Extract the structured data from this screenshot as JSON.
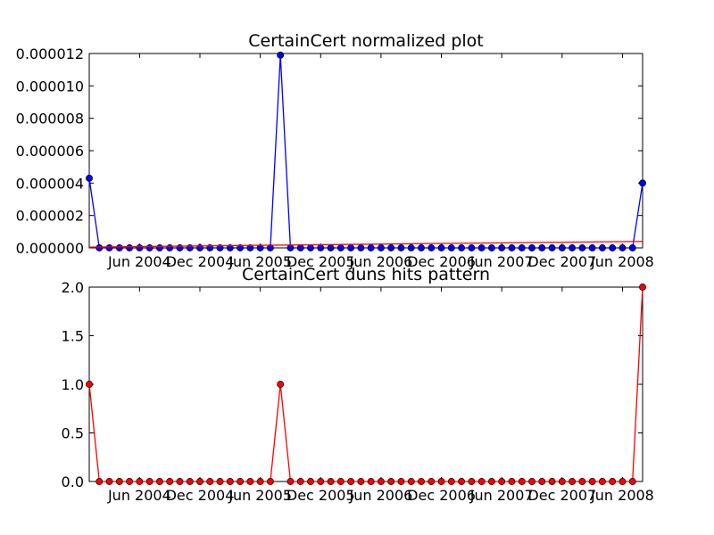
{
  "chart_data": [
    {
      "type": "line",
      "title": "CertainCert normalized plot",
      "xlabel": "",
      "ylabel": "",
      "ylim": [
        0,
        1.2e-05
      ],
      "yticks": [
        "0.000000",
        "0.000002",
        "0.000004",
        "0.000006",
        "0.000008",
        "0.000010",
        "0.000012"
      ],
      "xticks": [
        "Jun 2004",
        "Dec 2004",
        "Jun 2005",
        "Dec 2005",
        "Jun 2006",
        "Dec 2006",
        "Jun 2007",
        "Dec 2007",
        "Jun 2008"
      ],
      "x_range": [
        "2004-01",
        "2008-08"
      ],
      "grid": false,
      "series": [
        {
          "color": "#0000ff",
          "marker": "circle",
          "x": [
            "2004-01",
            "2004-02",
            "2004-03",
            "2004-04",
            "2004-05",
            "2004-06",
            "2004-07",
            "2004-08",
            "2004-09",
            "2004-10",
            "2004-11",
            "2004-12",
            "2005-01",
            "2005-02",
            "2005-03",
            "2005-04",
            "2005-05",
            "2005-06",
            "2005-07",
            "2005-08",
            "2005-09",
            "2005-10",
            "2005-11",
            "2005-12",
            "2006-01",
            "2006-02",
            "2006-03",
            "2006-04",
            "2006-05",
            "2006-06",
            "2006-07",
            "2006-08",
            "2006-09",
            "2006-10",
            "2006-11",
            "2006-12",
            "2007-01",
            "2007-02",
            "2007-03",
            "2007-04",
            "2007-05",
            "2007-06",
            "2007-07",
            "2007-08",
            "2007-09",
            "2007-10",
            "2007-11",
            "2007-12",
            "2008-01",
            "2008-02",
            "2008-03",
            "2008-04",
            "2008-05",
            "2008-06",
            "2008-07",
            "2008-08"
          ],
          "values": [
            4.3e-06,
            0,
            0,
            0,
            0,
            0,
            0,
            0,
            0,
            0,
            0,
            0,
            0,
            0,
            0,
            0,
            0,
            0,
            0,
            1.19e-05,
            0,
            0,
            0,
            0,
            0,
            0,
            0,
            0,
            0,
            0,
            0,
            0,
            0,
            0,
            0,
            0,
            0,
            0,
            0,
            0,
            0,
            0,
            0,
            0,
            0,
            0,
            0,
            0,
            0,
            0,
            0,
            0,
            0,
            0,
            0,
            4e-06
          ]
        },
        {
          "color": "#ff0000",
          "marker": "none",
          "x": [
            "2004-01",
            "2008-08"
          ],
          "values": [
            5e-08,
            4e-07
          ]
        }
      ]
    },
    {
      "type": "line",
      "title": "CertainCert duns hits pattern",
      "xlabel": "",
      "ylabel": "",
      "ylim": [
        0,
        2
      ],
      "yticks": [
        "0.0",
        "0.5",
        "1.0",
        "1.5",
        "2.0"
      ],
      "xticks": [
        "Jun 2004",
        "Dec 2004",
        "Jun 2005",
        "Dec 2005",
        "Jun 2006",
        "Dec 2006",
        "Jun 2007",
        "Dec 2007",
        "Jun 2008"
      ],
      "x_range": [
        "2004-01",
        "2008-08"
      ],
      "grid": false,
      "series": [
        {
          "color": "#ff0000",
          "marker": "circle",
          "x": [
            "2004-01",
            "2004-02",
            "2004-03",
            "2004-04",
            "2004-05",
            "2004-06",
            "2004-07",
            "2004-08",
            "2004-09",
            "2004-10",
            "2004-11",
            "2004-12",
            "2005-01",
            "2005-02",
            "2005-03",
            "2005-04",
            "2005-05",
            "2005-06",
            "2005-07",
            "2005-08",
            "2005-09",
            "2005-10",
            "2005-11",
            "2005-12",
            "2006-01",
            "2006-02",
            "2006-03",
            "2006-04",
            "2006-05",
            "2006-06",
            "2006-07",
            "2006-08",
            "2006-09",
            "2006-10",
            "2006-11",
            "2006-12",
            "2007-01",
            "2007-02",
            "2007-03",
            "2007-04",
            "2007-05",
            "2007-06",
            "2007-07",
            "2007-08",
            "2007-09",
            "2007-10",
            "2007-11",
            "2007-12",
            "2008-01",
            "2008-02",
            "2008-03",
            "2008-04",
            "2008-05",
            "2008-06",
            "2008-07",
            "2008-08"
          ],
          "values": [
            1,
            0,
            0,
            0,
            0,
            0,
            0,
            0,
            0,
            0,
            0,
            0,
            0,
            0,
            0,
            0,
            0,
            0,
            0,
            1,
            0,
            0,
            0,
            0,
            0,
            0,
            0,
            0,
            0,
            0,
            0,
            0,
            0,
            0,
            0,
            0,
            0,
            0,
            0,
            0,
            0,
            0,
            0,
            0,
            0,
            0,
            0,
            0,
            0,
            0,
            0,
            0,
            0,
            0,
            0,
            2
          ]
        }
      ]
    }
  ]
}
